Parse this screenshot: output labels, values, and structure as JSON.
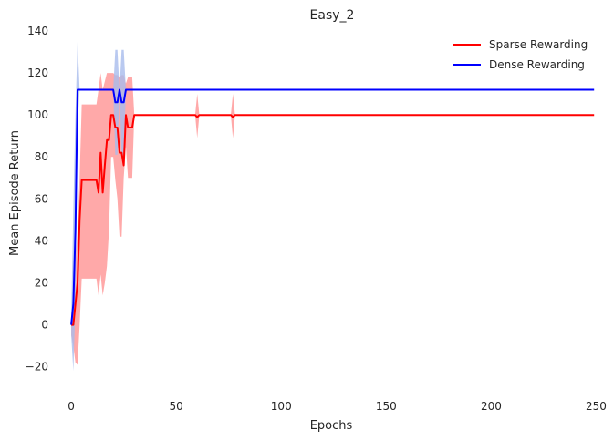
{
  "chart_data": {
    "type": "line",
    "title": "Easy_2",
    "xlabel": "Epochs",
    "ylabel": "Mean Episode Return",
    "xlim": [
      -7,
      255
    ],
    "ylim": [
      -31,
      140
    ],
    "xticks": [
      0,
      50,
      100,
      150,
      200,
      250
    ],
    "yticks": [
      -20,
      0,
      20,
      40,
      60,
      80,
      100,
      120,
      140
    ],
    "x_tick_labels": [
      "0",
      "50",
      "100",
      "150",
      "200",
      "250"
    ],
    "y_tick_labels": [
      "−20",
      "0",
      "20",
      "40",
      "60",
      "80",
      "100",
      "120",
      "140"
    ],
    "grid": false,
    "legend": "top-right",
    "series": [
      {
        "name": "Sparse Rewarding",
        "color": "#ff0000",
        "band_color": "#ff9a9a",
        "x": [
          0,
          1,
          2,
          3,
          4,
          5,
          6,
          7,
          8,
          9,
          10,
          11,
          12,
          13,
          14,
          15,
          16,
          17,
          18,
          19,
          20,
          21,
          22,
          23,
          24,
          25,
          26,
          27,
          28,
          29,
          30,
          31,
          58,
          59,
          60,
          61,
          62,
          75,
          76,
          77,
          78,
          79,
          249
        ],
        "y": [
          0,
          0,
          10,
          20,
          50,
          69,
          69,
          69,
          69,
          69,
          69,
          69,
          69,
          63,
          82,
          63,
          76,
          88,
          88,
          100,
          100,
          94,
          94,
          82,
          82,
          76,
          100,
          94,
          94,
          94,
          100,
          100,
          100,
          100,
          99,
          100,
          100,
          100,
          100,
          99,
          100,
          100,
          100
        ],
        "lower": [
          -5,
          -10,
          -18,
          -19,
          0,
          22,
          22,
          22,
          22,
          22,
          22,
          22,
          22,
          14,
          24,
          14,
          20,
          28,
          45,
          80,
          80,
          69,
          60,
          42,
          42,
          70,
          85,
          70,
          70,
          70,
          100,
          100,
          100,
          100,
          89,
          100,
          100,
          100,
          100,
          89,
          100,
          100,
          100
        ],
        "upper": [
          2,
          10,
          30,
          45,
          70,
          105,
          105,
          105,
          105,
          105,
          105,
          105,
          105,
          112,
          120,
          112,
          116,
          120,
          120,
          120,
          120,
          119,
          119,
          118,
          119,
          119,
          115,
          118,
          118,
          118,
          100,
          100,
          100,
          100,
          110,
          100,
          100,
          100,
          100,
          110,
          100,
          100,
          100
        ]
      },
      {
        "name": "Dense Rewarding",
        "color": "#0000ff",
        "band_color": "#a8bcec",
        "x": [
          0,
          1,
          2,
          3,
          4,
          5,
          6,
          7,
          8,
          9,
          10,
          11,
          12,
          13,
          14,
          15,
          16,
          17,
          18,
          19,
          20,
          21,
          22,
          23,
          24,
          25,
          26,
          27,
          28,
          29,
          30,
          31,
          249
        ],
        "y": [
          0,
          10,
          45,
          112,
          112,
          112,
          112,
          112,
          112,
          112,
          112,
          112,
          112,
          112,
          112,
          112,
          112,
          112,
          112,
          112,
          112,
          106,
          106,
          112,
          106,
          106,
          112,
          112,
          112,
          112,
          112,
          112,
          112
        ],
        "lower": [
          -5,
          -22,
          10,
          95,
          112,
          112,
          112,
          112,
          112,
          112,
          112,
          112,
          112,
          112,
          112,
          112,
          112,
          112,
          112,
          112,
          112,
          81,
          81,
          112,
          81,
          81,
          112,
          112,
          112,
          112,
          112,
          112,
          112
        ],
        "upper": [
          5,
          55,
          100,
          135,
          112,
          112,
          112,
          112,
          112,
          112,
          112,
          112,
          112,
          112,
          112,
          112,
          112,
          112,
          112,
          112,
          112,
          131,
          131,
          112,
          131,
          131,
          112,
          112,
          112,
          112,
          112,
          112,
          112
        ]
      }
    ]
  }
}
